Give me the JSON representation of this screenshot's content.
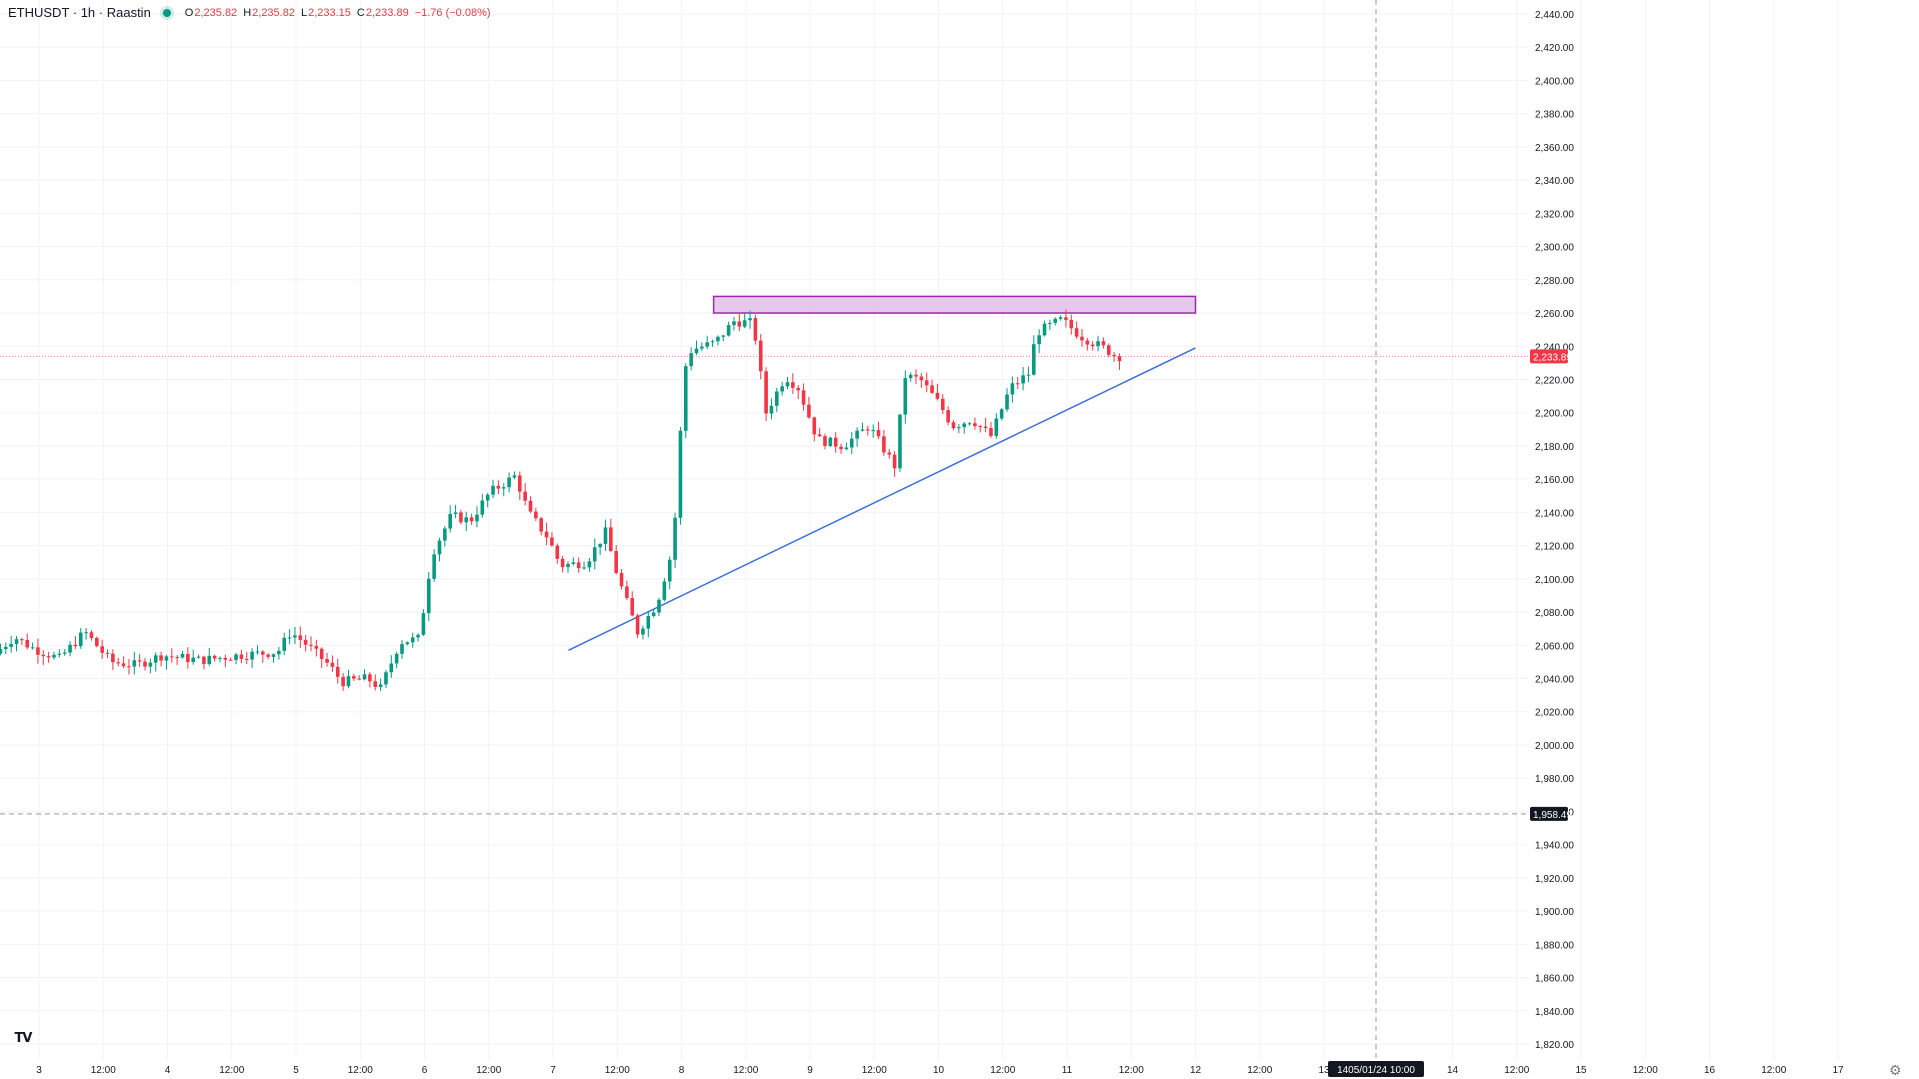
{
  "header": {
    "symbol": "ETHUSDT · 1h · Raastin",
    "open_label": "O",
    "open": "2,235.82",
    "high_label": "H",
    "high": "2,235.82",
    "low_label": "L",
    "low": "2,233.15",
    "close_label": "C",
    "close": "2,233.89",
    "change": "−1.76 (−0.08%)"
  },
  "logo": {
    "text": "TV",
    "icon": "tradingview-logo-icon"
  },
  "settings": {
    "icon": "settings-gear-icon",
    "glyph": "⚙"
  },
  "price_axis": {
    "ticks": [
      "2,440.00",
      "2,420.00",
      "2,400.00",
      "2,380.00",
      "2,360.00",
      "2,340.00",
      "2,320.00",
      "2,300.00",
      "2,280.00",
      "2,260.00",
      "2,240.00",
      "2,220.00",
      "2,200.00",
      "2,180.00",
      "2,160.00",
      "2,140.00",
      "2,120.00",
      "2,100.00",
      "2,080.00",
      "2,060.00",
      "2,040.00",
      "2,020.00",
      "2,000.00",
      "1,980.00",
      "1,960.00",
      "1,940.00",
      "1,920.00",
      "1,900.00",
      "1,880.00",
      "1,860.00",
      "1,840.00",
      "1,820.00"
    ],
    "current_price_label": "2,233.89",
    "current_price": 2233.89,
    "crosshair_price_label": "1,958.49",
    "crosshair_price": 1958.49
  },
  "time_axis": {
    "ticks": [
      "3",
      "12:00",
      "4",
      "12:00",
      "5",
      "12:00",
      "6",
      "12:00",
      "7",
      "12:00",
      "8",
      "12:00",
      "9",
      "12:00",
      "10",
      "12:00",
      "11",
      "12:00",
      "12",
      "12:00",
      "13",
      "14",
      "12:00",
      "15",
      "12:00",
      "16",
      "12:00",
      "17"
    ],
    "crosshair_time_label": "1405/01/24   10:00"
  },
  "colors": {
    "up": "#089981",
    "down": "#f23645",
    "trendline": "#3d6fd9",
    "zone_fill": "#e1bee7",
    "zone_border": "#9c27b0",
    "grid": "#f0f3fa"
  },
  "drawings": {
    "resistance_zone": {
      "from_day": 8.25,
      "to_day": 12.0,
      "price_low": 2260,
      "price_high": 2270
    },
    "trendline": {
      "from_day": 7.12,
      "from_price": 2057,
      "to_day": 12.0,
      "to_price": 2239
    }
  },
  "chart_data": {
    "type": "candlestick",
    "symbol": "ETHUSDT",
    "interval": "1h",
    "y_range": [
      1815,
      2445
    ],
    "x_range_days": [
      2.7,
      17.6
    ],
    "anchors": [
      {
        "day": 2.7,
        "price": 2055
      },
      {
        "day": 2.85,
        "price": 2065
      },
      {
        "day": 3.0,
        "price": 2058
      },
      {
        "day": 3.2,
        "price": 2052
      },
      {
        "day": 3.4,
        "price": 2068
      },
      {
        "day": 3.6,
        "price": 2050
      },
      {
        "day": 3.8,
        "price": 2048
      },
      {
        "day": 4.0,
        "price": 2054
      },
      {
        "day": 4.3,
        "price": 2051
      },
      {
        "day": 4.6,
        "price": 2054
      },
      {
        "day": 4.9,
        "price": 2056
      },
      {
        "day": 5.0,
        "price": 2068
      },
      {
        "day": 5.1,
        "price": 2062
      },
      {
        "day": 5.3,
        "price": 2048
      },
      {
        "day": 5.4,
        "price": 2038
      },
      {
        "day": 5.6,
        "price": 2040
      },
      {
        "day": 5.7,
        "price": 2034
      },
      {
        "day": 5.85,
        "price": 2062
      },
      {
        "day": 6.0,
        "price": 2064
      },
      {
        "day": 6.1,
        "price": 2115
      },
      {
        "day": 6.25,
        "price": 2138
      },
      {
        "day": 6.4,
        "price": 2135
      },
      {
        "day": 6.55,
        "price": 2152
      },
      {
        "day": 6.75,
        "price": 2162
      },
      {
        "day": 6.85,
        "price": 2140
      },
      {
        "day": 7.0,
        "price": 2125
      },
      {
        "day": 7.1,
        "price": 2108
      },
      {
        "day": 7.3,
        "price": 2110
      },
      {
        "day": 7.45,
        "price": 2128
      },
      {
        "day": 7.55,
        "price": 2100
      },
      {
        "day": 7.7,
        "price": 2068
      },
      {
        "day": 7.85,
        "price": 2085
      },
      {
        "day": 7.95,
        "price": 2112
      },
      {
        "day": 8.0,
        "price": 2142
      },
      {
        "day": 8.06,
        "price": 2225
      },
      {
        "day": 8.12,
        "price": 2238
      },
      {
        "day": 8.3,
        "price": 2242
      },
      {
        "day": 8.45,
        "price": 2255
      },
      {
        "day": 8.6,
        "price": 2254
      },
      {
        "day": 8.7,
        "price": 2200
      },
      {
        "day": 8.85,
        "price": 2222
      },
      {
        "day": 8.95,
        "price": 2215
      },
      {
        "day": 9.1,
        "price": 2184
      },
      {
        "day": 9.3,
        "price": 2180
      },
      {
        "day": 9.5,
        "price": 2192
      },
      {
        "day": 9.7,
        "price": 2168
      },
      {
        "day": 9.78,
        "price": 2222
      },
      {
        "day": 9.9,
        "price": 2220
      },
      {
        "day": 10.05,
        "price": 2205
      },
      {
        "day": 10.15,
        "price": 2192
      },
      {
        "day": 10.3,
        "price": 2196
      },
      {
        "day": 10.45,
        "price": 2186
      },
      {
        "day": 10.6,
        "price": 2215
      },
      {
        "day": 10.75,
        "price": 2224
      },
      {
        "day": 10.8,
        "price": 2248
      },
      {
        "day": 11.0,
        "price": 2256
      },
      {
        "day": 11.15,
        "price": 2246
      },
      {
        "day": 11.35,
        "price": 2238
      },
      {
        "day": 11.42,
        "price": 2234
      }
    ]
  }
}
